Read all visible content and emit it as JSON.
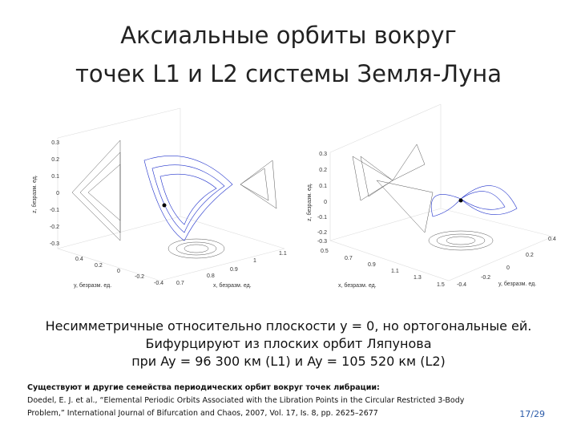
{
  "header": {
    "title_lines": [
      "Аксиальные орбиты вокруг",
      "точек L1 и L2 системы Земля-Луна"
    ]
  },
  "plots": [
    {
      "z_label": "z, безразм. ед.",
      "x_label": "x, безразм. ед.",
      "y_label": "y, безразм. ед.",
      "z_ticks": [
        "0.3",
        "0.2",
        "0.1",
        "0",
        "-0.1",
        "-0.2",
        "-0.3"
      ],
      "y_ticks": [
        "0.4",
        "0.2",
        "0",
        "-0.2",
        "-0.4"
      ],
      "x_ticks": [
        "0.7",
        "0.8",
        "0.9",
        "1",
        "1.1"
      ]
    },
    {
      "z_label": "z, безразм. ед.",
      "x_label": "x, безразм. ед.",
      "y_label": "y, безразм. ед.",
      "z_ticks": [
        "0.3",
        "0.2",
        "0.1",
        "0",
        "-0.1",
        "-0.2",
        "-0.3"
      ],
      "x_ticks": [
        "0.5",
        "0.7",
        "0.9",
        "1.1",
        "1.3",
        "1.5"
      ],
      "y_ticks": [
        "-0.4",
        "-0.2",
        "0",
        "0.2",
        "0.4"
      ]
    }
  ],
  "caption_lines": [
    "Несимметричные относительно плоскости y = 0, но ортогональные ей.",
    "Бифурцируют из плоских орбит Ляпунова",
    "при Ay = 96 300 км (L1) и Ay = 105 520 км (L2)"
  ],
  "footnote": {
    "bold": "Существуют и другие семейства периодических орбит вокруг точек либрации:",
    "lines": [
      "Doedel, E. J. et al., “Elemental Periodic Orbits Associated with the Libration Points in the Circular Restricted 3-Body",
      "Problem,” International Journal of Bifurcation and Chaos, 2007, Vol. 17, Is. 8, pp. 2625–2677"
    ]
  },
  "page_number": "17/29"
}
